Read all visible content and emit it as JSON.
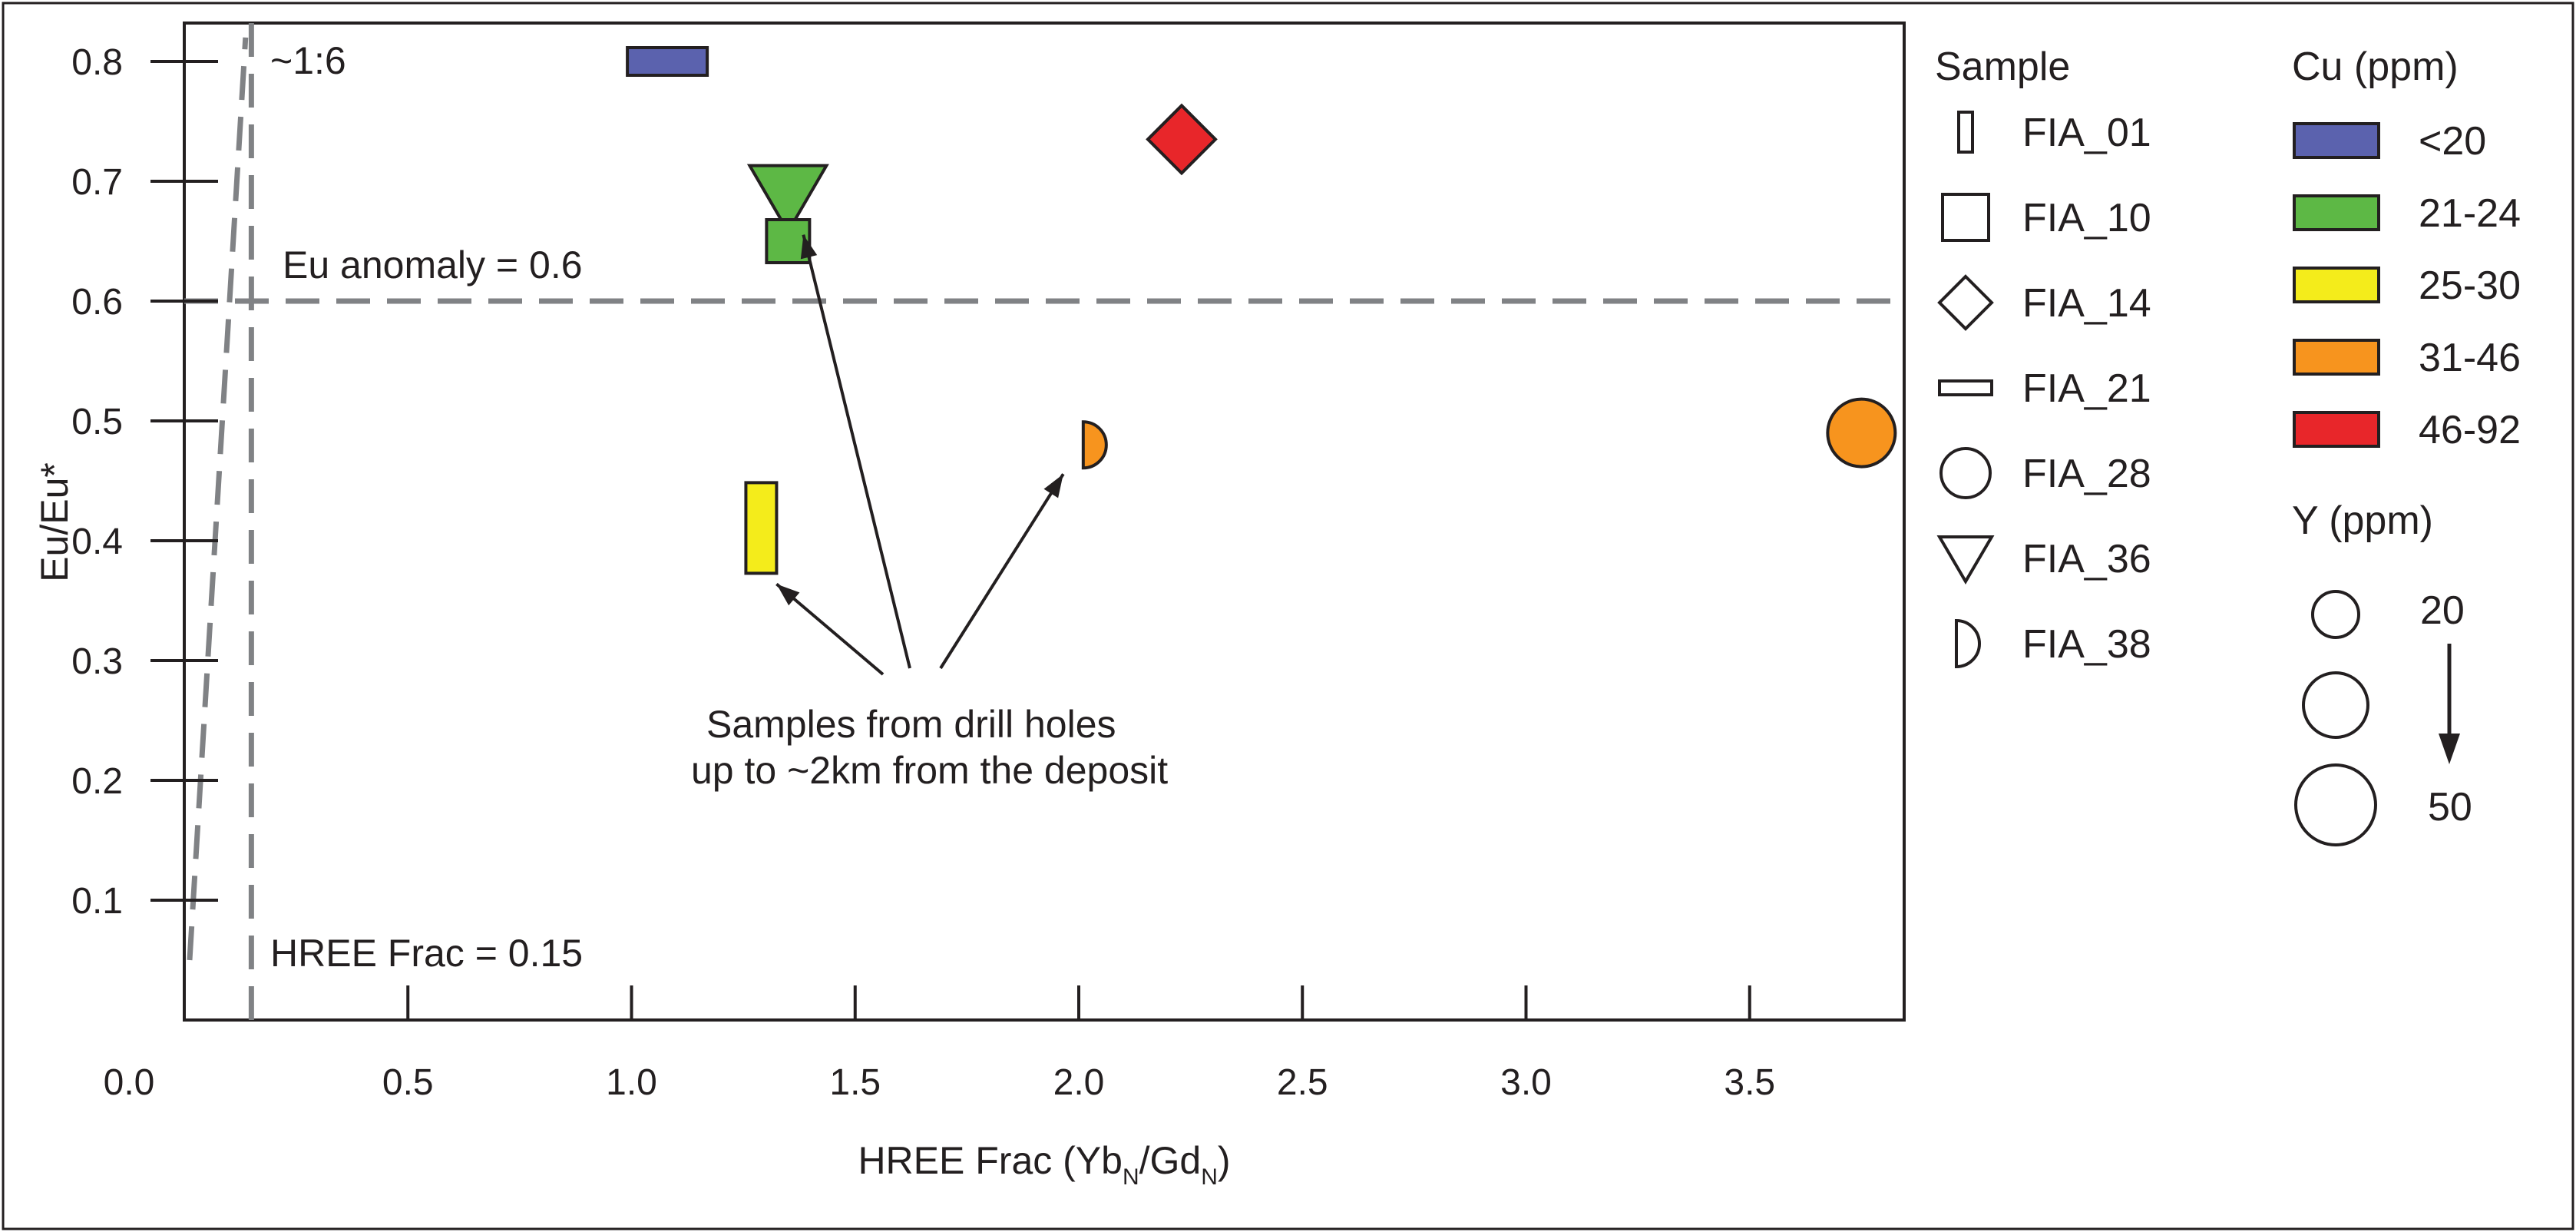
{
  "chart_data": {
    "type": "scatter",
    "xlabel": "HREE Frac (Yb",
    "xlabel_sub1": "N",
    "xlabel_mid": "/Gd",
    "xlabel_sub2": "N",
    "xlabel_end": ")",
    "ylabel": "Eu/Eu*",
    "xlim": [
      0.0,
      3.85
    ],
    "ylim": [
      0.0,
      0.82
    ],
    "x_ticks": [
      0.0,
      0.5,
      1.0,
      1.5,
      2.0,
      2.5,
      3.0,
      3.5
    ],
    "x_tick_labels": [
      "0.0",
      "0.5",
      "1.0",
      "1.5",
      "2.0",
      "2.5",
      "3.0",
      "3.5"
    ],
    "y_ticks": [
      0.1,
      0.2,
      0.3,
      0.4,
      0.5,
      0.6,
      0.7,
      0.8
    ],
    "y_tick_labels": [
      "0.1",
      "0.2",
      "0.3",
      "0.4",
      "0.5",
      "0.6",
      "0.7",
      "0.8"
    ],
    "grid": false,
    "points": [
      {
        "sample": "FIA_21",
        "x": 1.08,
        "y": 0.8,
        "shape": "wide-rect",
        "color": "#5b62ae"
      },
      {
        "sample": "FIA_36",
        "x": 1.35,
        "y": 0.69,
        "shape": "triangle-down",
        "color": "#5db845"
      },
      {
        "sample": "FIA_10",
        "x": 1.35,
        "y": 0.65,
        "shape": "square",
        "color": "#5db845"
      },
      {
        "sample": "FIA_14",
        "x": 2.23,
        "y": 0.735,
        "shape": "diamond",
        "color": "#e8262a"
      },
      {
        "sample": "FIA_01",
        "x": 1.29,
        "y": 0.41,
        "shape": "tall-rect",
        "color": "#f4ec1b"
      },
      {
        "sample": "FIA_38",
        "x": 2.01,
        "y": 0.48,
        "shape": "half-circle",
        "color": "#f7941e"
      },
      {
        "sample": "FIA_28",
        "x": 3.75,
        "y": 0.49,
        "shape": "circle",
        "color": "#f7941e"
      }
    ],
    "reference_lines": [
      {
        "kind": "horizontal",
        "y": 0.6,
        "label": "Eu anomaly = 0.6"
      },
      {
        "kind": "vertical",
        "x": 0.15,
        "label": "HREE Frac = 0.15"
      },
      {
        "kind": "ratio",
        "label": "~1:6"
      }
    ],
    "annotation": {
      "line1": "Samples  from drill holes",
      "line2": "up to ~2km from the deposit",
      "arrow_targets": [
        "FIA_01",
        "FIA_36",
        "FIA_38"
      ]
    },
    "legend": {
      "placement": "right",
      "sample_title": "Sample",
      "samples": [
        {
          "label": "FIA_01",
          "icon": "tall-rect-icon"
        },
        {
          "label": "FIA_10",
          "icon": "square-icon"
        },
        {
          "label": "FIA_14",
          "icon": "diamond-icon"
        },
        {
          "label": "FIA_21",
          "icon": "wide-rect-icon"
        },
        {
          "label": "FIA_28",
          "icon": "circle-icon"
        },
        {
          "label": "FIA_36",
          "icon": "triangle-down-icon"
        },
        {
          "label": "FIA_38",
          "icon": "half-circle-icon"
        }
      ],
      "cu_title": "Cu (ppm)",
      "cu_classes": [
        {
          "label": "<20",
          "color": "#5b62ae"
        },
        {
          "label": "21-24",
          "color": "#5db845"
        },
        {
          "label": "25-30",
          "color": "#f4ec1b"
        },
        {
          "label": "31-46",
          "color": "#f7941e"
        },
        {
          "label": "46-92",
          "color": "#e8262a"
        }
      ],
      "y_title": "Y (ppm)",
      "y_min_label": "20",
      "y_max_label": "50"
    }
  }
}
